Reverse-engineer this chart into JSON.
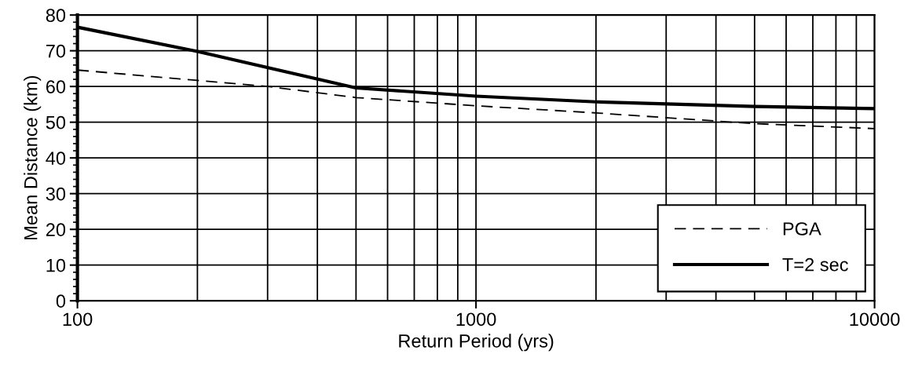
{
  "chart_data": {
    "type": "line",
    "xlabel": "Return Period (yrs)",
    "ylabel": "Mean Distance (km)",
    "log": "x",
    "xlim": [
      100,
      10000
    ],
    "xticks": [
      100,
      1000,
      10000
    ],
    "ylim": [
      0,
      80
    ],
    "yticks": [
      0,
      10,
      20,
      30,
      40,
      50,
      60,
      70,
      80
    ],
    "grid": true,
    "legend": "bottom right",
    "series": [
      {
        "name": "PGA",
        "color": "#000000",
        "line_style": "dashed",
        "x": [
          100,
          200,
          300,
          500,
          1000,
          2000,
          5000,
          10000
        ],
        "values": [
          64.6,
          61.7,
          60.0,
          56.9,
          54.6,
          52.6,
          49.6,
          48.2
        ]
      },
      {
        "name": "T=2 sec",
        "color": "#000000",
        "line_style": "solid",
        "x": [
          100,
          200,
          500,
          1000,
          2000,
          5000,
          10000
        ],
        "values": [
          76.6,
          69.8,
          59.6,
          57.3,
          55.7,
          54.4,
          53.8
        ]
      }
    ]
  }
}
